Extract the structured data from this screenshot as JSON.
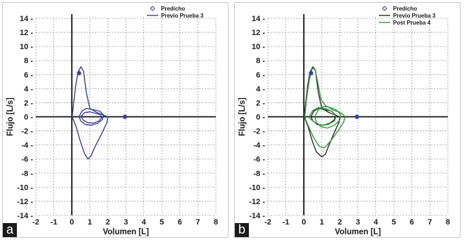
{
  "chart_data": [
    {
      "type": "line",
      "panel_label": "a",
      "xlabel": "Volumen [L]",
      "ylabel": "Flujo [L/s]",
      "xlim": [
        -2,
        8
      ],
      "ylim": [
        -14,
        14
      ],
      "xticks": [
        "-2",
        "-1",
        "0",
        "1",
        "2",
        "3",
        "4",
        "5",
        "6",
        "7",
        "8"
      ],
      "yticks": [
        "14",
        "12",
        "10",
        "8",
        "6",
        "4",
        "2",
        "0",
        "-2",
        "-4",
        "-6",
        "-8",
        "-10",
        "-12",
        "-14"
      ],
      "grid": true,
      "legend_position": "top-right",
      "legend": [
        {
          "label": "Predicho",
          "kind": "marker",
          "color": "#3a3f9e"
        },
        {
          "label": "Previo Prueba 3",
          "kind": "line",
          "color": "#3a3f9e"
        }
      ],
      "predicted_points": [
        {
          "x": 0.4,
          "y": 6.2
        },
        {
          "x": 2.95,
          "y": 0
        }
      ],
      "series": [
        {
          "name": "Previo Prueba 3",
          "color": "#3a3f9e",
          "points": [
            [
              0.02,
              0
            ],
            [
              0.1,
              2
            ],
            [
              0.22,
              4.5
            ],
            [
              0.35,
              6.4
            ],
            [
              0.5,
              7.1
            ],
            [
              0.65,
              6.5
            ],
            [
              0.8,
              3.5
            ],
            [
              1.0,
              1.2
            ],
            [
              1.4,
              0.6
            ],
            [
              1.8,
              0.2
            ],
            [
              2.0,
              0
            ],
            [
              1.95,
              -0.8
            ],
            [
              1.7,
              -2.2
            ],
            [
              1.3,
              -4.2
            ],
            [
              1.05,
              -5.6
            ],
            [
              0.9,
              -6.0
            ],
            [
              0.7,
              -5.2
            ],
            [
              0.45,
              -3.3
            ],
            [
              0.25,
              -1.5
            ],
            [
              0.05,
              -0.2
            ],
            [
              0.02,
              0
            ]
          ]
        },
        {
          "name": "Previo Prueba 3",
          "color": "#3a3f9e",
          "points": [
            [
              0.4,
              0
            ],
            [
              0.55,
              0.8
            ],
            [
              0.8,
              1.2
            ],
            [
              1.2,
              1.0
            ],
            [
              1.55,
              0.8
            ],
            [
              1.75,
              0.3
            ],
            [
              1.7,
              -0.4
            ],
            [
              1.45,
              -0.9
            ],
            [
              1.1,
              -1.2
            ],
            [
              0.75,
              -1.1
            ],
            [
              0.5,
              -0.6
            ],
            [
              0.4,
              0
            ]
          ]
        },
        {
          "name": "Previo Prueba 3",
          "color": "#3a3f9e",
          "points": [
            [
              0.5,
              0
            ],
            [
              0.7,
              0.6
            ],
            [
              1.0,
              0.7
            ],
            [
              1.3,
              0.5
            ],
            [
              1.6,
              0.3
            ],
            [
              1.65,
              -0.2
            ],
            [
              1.5,
              -0.6
            ],
            [
              1.2,
              -0.9
            ],
            [
              0.9,
              -0.85
            ],
            [
              0.65,
              -0.5
            ],
            [
              0.5,
              0
            ]
          ]
        }
      ]
    },
    {
      "type": "line",
      "panel_label": "b",
      "xlabel": "Volumen [L]",
      "ylabel": "Flujo [L/s]",
      "xlim": [
        -2,
        8
      ],
      "ylim": [
        -14,
        14
      ],
      "xticks": [
        "-2",
        "-1",
        "0",
        "1",
        "2",
        "3",
        "4",
        "5",
        "6",
        "7",
        "8"
      ],
      "yticks": [
        "14",
        "12",
        "10",
        "8",
        "6",
        "4",
        "2",
        "0",
        "-2",
        "-4",
        "-6",
        "-8",
        "-10",
        "-12",
        "-14"
      ],
      "grid": true,
      "legend_position": "top-right",
      "legend": [
        {
          "label": "Predicho",
          "kind": "marker",
          "color": "#3a3f9e"
        },
        {
          "label": "Previo Prueba 3",
          "kind": "line",
          "color": "#2b2b2b"
        },
        {
          "label": "Post Prueba 4",
          "kind": "line",
          "color": "#2f9a3a"
        }
      ],
      "predicted_points": [
        {
          "x": 0.4,
          "y": 6.2
        },
        {
          "x": 2.95,
          "y": 0
        }
      ],
      "series": [
        {
          "name": "Previo Prueba 3",
          "color": "#2b2b2b",
          "points": [
            [
              0.02,
              0
            ],
            [
              0.1,
              2
            ],
            [
              0.22,
              4.5
            ],
            [
              0.35,
              6.4
            ],
            [
              0.5,
              7.1
            ],
            [
              0.65,
              6.5
            ],
            [
              0.8,
              3.5
            ],
            [
              1.0,
              1.2
            ],
            [
              1.4,
              0.6
            ],
            [
              1.8,
              0.2
            ],
            [
              2.0,
              0
            ],
            [
              1.95,
              -0.8
            ],
            [
              1.7,
              -2.2
            ],
            [
              1.4,
              -4.0
            ],
            [
              1.2,
              -5.3
            ],
            [
              1.0,
              -5.7
            ],
            [
              0.7,
              -5.0
            ],
            [
              0.45,
              -3.3
            ],
            [
              0.25,
              -1.5
            ],
            [
              0.05,
              -0.2
            ],
            [
              0.02,
              0
            ]
          ]
        },
        {
          "name": "Previo Prueba 3",
          "color": "#2b2b2b",
          "points": [
            [
              0.4,
              0
            ],
            [
              0.55,
              0.8
            ],
            [
              0.8,
              1.2
            ],
            [
              1.2,
              1.0
            ],
            [
              1.55,
              0.8
            ],
            [
              1.75,
              0.3
            ],
            [
              1.7,
              -0.4
            ],
            [
              1.45,
              -0.9
            ],
            [
              1.1,
              -1.2
            ],
            [
              0.75,
              -1.1
            ],
            [
              0.5,
              -0.6
            ],
            [
              0.4,
              0
            ]
          ]
        },
        {
          "name": "Post Prueba 4",
          "color": "#2f9a3a",
          "points": [
            [
              0.05,
              0
            ],
            [
              0.15,
              2.5
            ],
            [
              0.3,
              5.2
            ],
            [
              0.45,
              6.8
            ],
            [
              0.6,
              6.9
            ],
            [
              0.75,
              5.2
            ],
            [
              0.95,
              2.5
            ],
            [
              1.2,
              1.6
            ],
            [
              1.6,
              1.0
            ],
            [
              2.1,
              0.5
            ],
            [
              2.3,
              0
            ],
            [
              2.2,
              -0.8
            ],
            [
              1.9,
              -2.0
            ],
            [
              1.5,
              -3.4
            ],
            [
              1.15,
              -4.4
            ],
            [
              0.85,
              -4.2
            ],
            [
              0.55,
              -3.0
            ],
            [
              0.3,
              -1.6
            ],
            [
              0.1,
              -0.4
            ],
            [
              0.05,
              0
            ]
          ]
        },
        {
          "name": "Post Prueba 4",
          "color": "#2f9a3a",
          "points": [
            [
              0.6,
              0
            ],
            [
              0.8,
              1.0
            ],
            [
              1.1,
              1.5
            ],
            [
              1.5,
              1.3
            ],
            [
              1.85,
              0.9
            ],
            [
              2.05,
              0.3
            ],
            [
              2.0,
              -0.5
            ],
            [
              1.7,
              -1.2
            ],
            [
              1.3,
              -1.6
            ],
            [
              0.95,
              -1.4
            ],
            [
              0.7,
              -0.8
            ],
            [
              0.6,
              0
            ]
          ]
        },
        {
          "name": "Post Prueba 4",
          "color": "#2f9a3a",
          "points": [
            [
              0.3,
              0
            ],
            [
              0.5,
              0.9
            ],
            [
              0.8,
              1.3
            ],
            [
              1.2,
              1.2
            ],
            [
              1.6,
              0.7
            ],
            [
              1.8,
              0.1
            ],
            [
              1.7,
              -0.6
            ],
            [
              1.35,
              -1.1
            ],
            [
              0.95,
              -1.2
            ],
            [
              0.6,
              -0.8
            ],
            [
              0.35,
              -0.3
            ],
            [
              0.3,
              0
            ]
          ]
        }
      ]
    }
  ]
}
